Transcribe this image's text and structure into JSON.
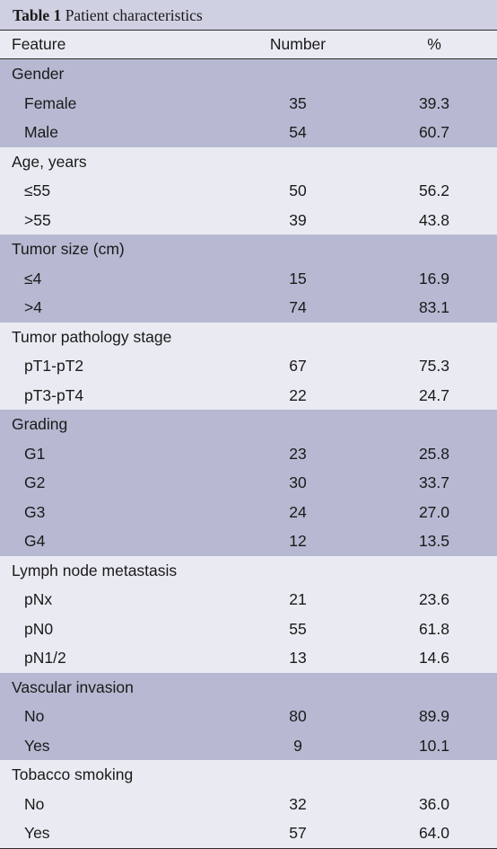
{
  "caption": {
    "label": "Table 1",
    "title": "Patient characteristics"
  },
  "columns": [
    "Feature",
    "Number",
    "%"
  ],
  "groups": [
    {
      "label": "Gender",
      "rows": [
        [
          "Female",
          "35",
          "39.3"
        ],
        [
          "Male",
          "54",
          "60.7"
        ]
      ]
    },
    {
      "label": "Age, years",
      "rows": [
        [
          "≤55",
          "50",
          "56.2"
        ],
        [
          ">55",
          "39",
          "43.8"
        ]
      ]
    },
    {
      "label": "Tumor size (cm)",
      "rows": [
        [
          "≤4",
          "15",
          "16.9"
        ],
        [
          ">4",
          "74",
          "83.1"
        ]
      ]
    },
    {
      "label": "Tumor pathology stage",
      "rows": [
        [
          "pT1-pT2",
          "67",
          "75.3"
        ],
        [
          "pT3-pT4",
          "22",
          "24.7"
        ]
      ]
    },
    {
      "label": "Grading",
      "rows": [
        [
          "G1",
          "23",
          "25.8"
        ],
        [
          "G2",
          "30",
          "33.7"
        ],
        [
          "G3",
          "24",
          "27.0"
        ],
        [
          "G4",
          "12",
          "13.5"
        ]
      ]
    },
    {
      "label": "Lymph node metastasis",
      "rows": [
        [
          "pNx",
          "21",
          "23.6"
        ],
        [
          "pN0",
          "55",
          "61.8"
        ],
        [
          "pN1/2",
          "13",
          "14.6"
        ]
      ]
    },
    {
      "label": "Vascular invasion",
      "rows": [
        [
          "No",
          "80",
          "89.9"
        ],
        [
          "Yes",
          "9",
          "10.1"
        ]
      ]
    },
    {
      "label": "Tobacco smoking",
      "rows": [
        [
          "No",
          "32",
          "36.0"
        ],
        [
          "Yes",
          "57",
          "64.0"
        ]
      ]
    }
  ]
}
